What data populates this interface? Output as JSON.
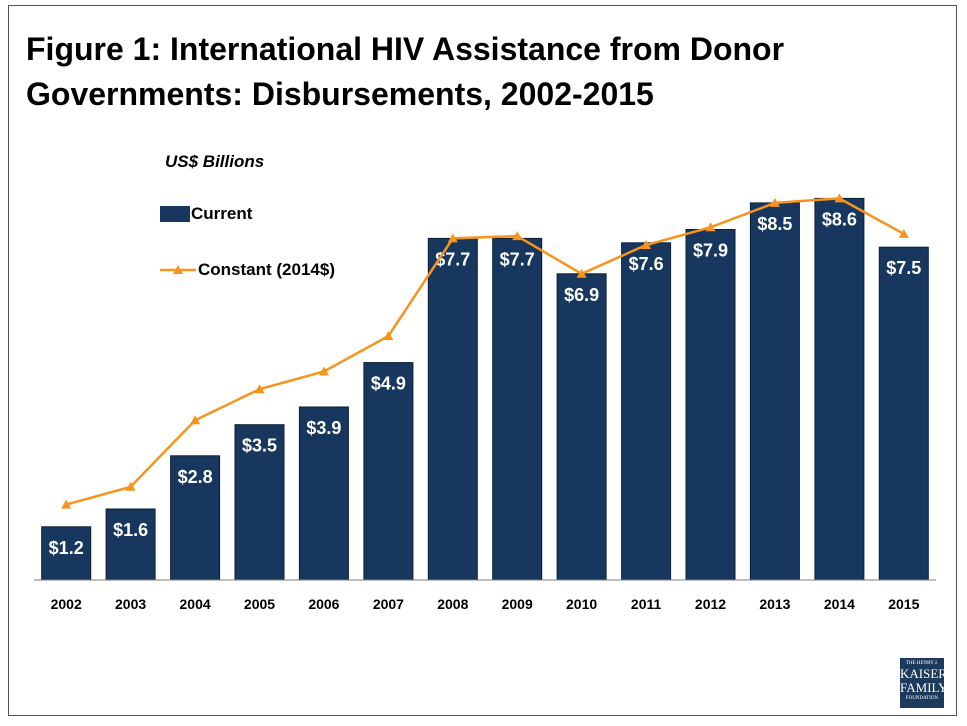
{
  "title": "Figure 1: International HIV Assistance from Donor Governments: Disbursements, 2002-2015",
  "unit_label": "US$ Billions",
  "legend": {
    "current": "Current",
    "constant": "Constant (2014$)"
  },
  "colors": {
    "current_bar": "#17375e",
    "constant_line": "#f7941d",
    "label_text": "#ffffff"
  },
  "logo": {
    "line1": "THE HENRY J.",
    "line2": "KAISER",
    "line3": "FAMILY",
    "line4": "FOUNDATION"
  },
  "chart_data": {
    "type": "bar",
    "title": "Figure 1: International HIV Assistance from Donor Governments: Disbursements, 2002-2015",
    "ylabel": "US$ Billions",
    "xlabel": "",
    "ylim": [
      0,
      9.5
    ],
    "grid": false,
    "legend_placement": "top-left",
    "categories": [
      "2002",
      "2003",
      "2004",
      "2005",
      "2006",
      "2007",
      "2008",
      "2009",
      "2010",
      "2011",
      "2012",
      "2013",
      "2014",
      "2015"
    ],
    "series": [
      {
        "name": "Current",
        "type": "bar",
        "values": [
          1.2,
          1.6,
          2.8,
          3.5,
          3.9,
          4.9,
          7.7,
          7.7,
          6.9,
          7.6,
          7.9,
          8.5,
          8.6,
          7.5
        ],
        "labels": [
          "$1.2",
          "$1.6",
          "$2.8",
          "$3.5",
          "$3.9",
          "$4.9",
          "$7.7",
          "$7.7",
          "$6.9",
          "$7.6",
          "$7.9",
          "$8.5",
          "$8.6",
          "$7.5"
        ]
      },
      {
        "name": "Constant (2014$)",
        "type": "line",
        "values": [
          1.7,
          2.1,
          3.6,
          4.3,
          4.7,
          5.5,
          7.7,
          7.75,
          6.9,
          7.55,
          7.95,
          8.5,
          8.6,
          7.8
        ]
      }
    ]
  }
}
